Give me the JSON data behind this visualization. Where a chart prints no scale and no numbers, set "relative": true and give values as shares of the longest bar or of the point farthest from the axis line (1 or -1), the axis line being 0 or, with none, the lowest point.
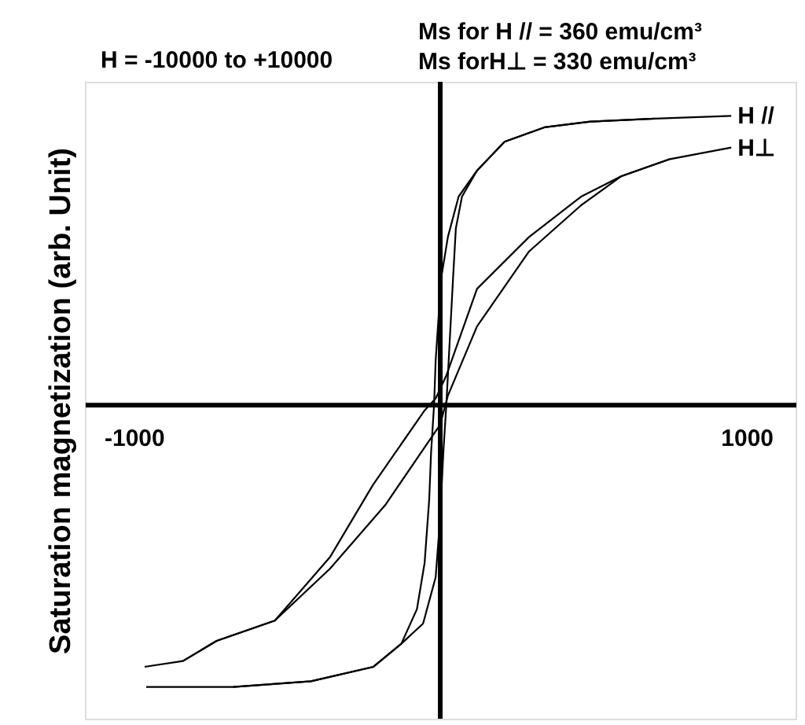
{
  "chart_data": {
    "type": "line",
    "relative": true,
    "ylabel": "Saturation magnetization (arb. Unit)",
    "annotations": [
      "H = -10000 to +10000",
      "Ms for H // = 360 emu/cm³",
      "Ms forH⊥ = 330 emu/cm³"
    ],
    "xlim": [
      -1160,
      1160
    ],
    "xticks": [
      -1000,
      1000
    ],
    "grid": false,
    "legend": false,
    "marker": "none",
    "line_style": "solid",
    "series": [
      {
        "name": "H //",
        "color": "#000000",
        "x": [
          950,
          700,
          490,
          340,
          210,
          120,
          60,
          25,
          5,
          -5,
          -15,
          -20,
          -30,
          -36,
          -51,
          -76,
          -127,
          -218,
          -422,
          -676,
          -960
        ],
        "values": [
          1.0,
          0.99,
          0.98,
          0.96,
          0.91,
          0.81,
          0.72,
          0.58,
          0.45,
          0.31,
          0.15,
          0.0,
          -0.17,
          -0.33,
          -0.55,
          -0.71,
          -0.83,
          -0.91,
          -0.96,
          -0.98,
          -0.98
        ]
      },
      {
        "color": "#000000",
        "x": [
          -676,
          -422,
          -218,
          -127,
          -56,
          -15,
          0,
          10,
          20,
          30,
          41,
          51,
          71,
          120,
          210,
          340,
          490,
          700
        ],
        "values": [
          -0.98,
          -0.96,
          -0.91,
          -0.83,
          -0.76,
          -0.6,
          -0.39,
          -0.17,
          0.0,
          0.2,
          0.42,
          0.61,
          0.72,
          0.81,
          0.91,
          0.96,
          0.98,
          0.99
        ]
      },
      {
        "name": "H⊥",
        "color": "#000000",
        "x": [
          950,
          750,
          590,
          460,
          290,
          120,
          20,
          -15,
          -50,
          -220,
          -360,
          -540,
          -730,
          -840,
          -965
        ],
        "values": [
          0.89,
          0.85,
          0.79,
          0.72,
          0.58,
          0.4,
          0.1,
          0.02,
          -0.02,
          -0.28,
          -0.53,
          -0.75,
          -0.82,
          -0.89,
          -0.91
        ]
      },
      {
        "color": "#000000",
        "x": [
          -840,
          -730,
          -540,
          -360,
          -180,
          0,
          25,
          120,
          290,
          460,
          590,
          750
        ],
        "values": [
          -0.89,
          -0.82,
          -0.75,
          -0.57,
          -0.35,
          -0.07,
          0.03,
          0.27,
          0.53,
          0.69,
          0.79,
          0.85
        ]
      }
    ]
  }
}
